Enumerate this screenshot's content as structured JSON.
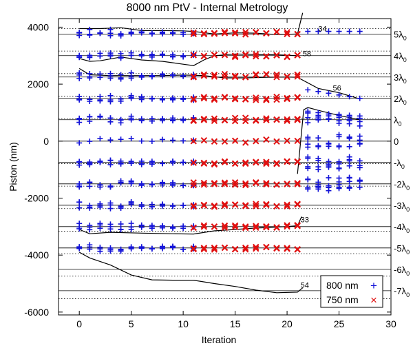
{
  "chart_data": {
    "type": "scatter",
    "title": "8000 nm PtV - Internal Metrology",
    "xlabel": "Iteration",
    "ylabel": "Piston (nm)",
    "xlim": [
      -2,
      30
    ],
    "ylim": [
      -6100,
      4300
    ],
    "xticks": [
      0,
      5,
      10,
      15,
      20,
      25,
      30
    ],
    "yticks": [
      -6000,
      -4000,
      -2000,
      0,
      2000,
      4000
    ],
    "grid": false,
    "legend_position": "bottom-right",
    "wavelength_lines": [
      {
        "base": "5λ",
        "sub": "0",
        "solid": 3750,
        "dotted": 3950
      },
      {
        "base": "4λ",
        "sub": "0",
        "solid": 3000,
        "dotted": 3160
      },
      {
        "base": "3λ",
        "sub": "0",
        "solid": 2250,
        "dotted": 2370
      },
      {
        "base": "2λ",
        "sub": "0",
        "solid": 1500,
        "dotted": 1580
      },
      {
        "base": "λ",
        "sub": "0",
        "solid": 750,
        "dotted": 790
      },
      {
        "base": "0",
        "sub": "",
        "solid": 0,
        "dotted": 0
      },
      {
        "base": "-λ",
        "sub": "0",
        "solid": -750,
        "dotted": -790
      },
      {
        "base": "-2λ",
        "sub": "0",
        "solid": -1500,
        "dotted": -1580
      },
      {
        "base": "-3λ",
        "sub": "0",
        "solid": -2250,
        "dotted": -2370
      },
      {
        "base": "-4λ",
        "sub": "0",
        "solid": -3000,
        "dotted": -3160
      },
      {
        "base": "-5λ",
        "sub": "0",
        "solid": -3750,
        "dotted": -3950
      },
      {
        "base": "-6λ",
        "sub": "0",
        "solid": -4500,
        "dotted": -4740
      },
      {
        "base": "-7λ",
        "sub": "0",
        "solid": -5250,
        "dotted": -5530
      }
    ],
    "series": [
      {
        "name": "800 nm",
        "marker": "plus",
        "color": "#1414d8",
        "x_range": [
          0,
          11
        ],
        "x_extra": [
          22,
          27
        ]
      },
      {
        "name": "750 nm",
        "marker": "cross",
        "color": "#e01010",
        "x_range": [
          11,
          21
        ]
      }
    ],
    "track_levels": [
      3800,
      3000,
      2300,
      1500,
      760,
      0,
      -760,
      -1500,
      -2250,
      -3000,
      -3750
    ],
    "curves": [
      {
        "label": "34",
        "label_xy": [
          23,
          3850
        ],
        "points": [
          [
            0,
            3950
          ],
          [
            2,
            3950
          ],
          [
            4,
            3980
          ],
          [
            6,
            3880
          ],
          [
            8,
            3880
          ],
          [
            10,
            3870
          ],
          [
            11,
            3850
          ],
          [
            13,
            3760
          ],
          [
            15,
            3800
          ],
          [
            17,
            3790
          ],
          [
            19,
            3740
          ],
          [
            21,
            3760
          ],
          [
            21.5,
            4500
          ]
        ]
      },
      {
        "label": "58",
        "label_xy": [
          21.5,
          2980
        ],
        "points": [
          [
            0,
            2900
          ],
          [
            1,
            2800
          ],
          [
            2,
            2820
          ],
          [
            4,
            2950
          ],
          [
            6,
            2850
          ],
          [
            8,
            2800
          ],
          [
            10,
            2700
          ],
          [
            11,
            2650
          ],
          [
            12,
            2850
          ],
          [
            13,
            3000
          ],
          [
            15,
            3060
          ],
          [
            17,
            3040
          ],
          [
            19,
            3030
          ],
          [
            21,
            3000
          ]
        ]
      },
      {
        "label": "",
        "label_xy": [
          0,
          0
        ],
        "points": [
          [
            0,
            2550
          ],
          [
            1,
            2330
          ],
          [
            3,
            2300
          ],
          [
            5,
            2300
          ],
          [
            8,
            2300
          ],
          [
            10,
            2320
          ],
          [
            12,
            2300
          ],
          [
            14,
            2220
          ],
          [
            16,
            2220
          ],
          [
            18,
            2240
          ],
          [
            20,
            2250
          ],
          [
            21,
            2240
          ],
          [
            23,
            1850
          ],
          [
            25,
            1700
          ],
          [
            27,
            1480
          ]
        ]
      },
      {
        "label": "56",
        "label_xy": [
          24.4,
          1770
        ],
        "points": [
          [
            21,
            -1150
          ],
          [
            21.6,
            1100
          ],
          [
            22,
            1180
          ],
          [
            23,
            1080
          ],
          [
            25,
            900
          ],
          [
            27,
            750
          ]
        ]
      },
      {
        "label": "33",
        "label_xy": [
          21.3,
          -2850
        ],
        "points": [
          [
            0,
            -3100
          ],
          [
            1,
            -3250
          ],
          [
            3,
            -3200
          ],
          [
            6,
            -3230
          ],
          [
            9,
            -3250
          ],
          [
            11,
            -3260
          ],
          [
            13,
            -3150
          ],
          [
            15,
            -3100
          ],
          [
            17,
            -3050
          ],
          [
            19,
            -3020
          ],
          [
            21,
            -2970
          ],
          [
            21.4,
            -2650
          ]
        ]
      },
      {
        "label": "54",
        "label_xy": [
          21.3,
          -5150
        ],
        "points": [
          [
            0,
            -3900
          ],
          [
            1,
            -4100
          ],
          [
            3,
            -4350
          ],
          [
            5,
            -4700
          ],
          [
            7,
            -4870
          ],
          [
            9,
            -4880
          ],
          [
            11,
            -4880
          ],
          [
            13,
            -5000
          ],
          [
            15,
            -5100
          ],
          [
            17,
            -5230
          ],
          [
            19,
            -5320
          ],
          [
            21,
            -5300
          ],
          [
            21.5,
            -5150
          ]
        ]
      }
    ],
    "legend": [
      {
        "label": "800 nm",
        "marker": "+"
      },
      {
        "label": "750 nm",
        "marker": "×"
      }
    ]
  }
}
